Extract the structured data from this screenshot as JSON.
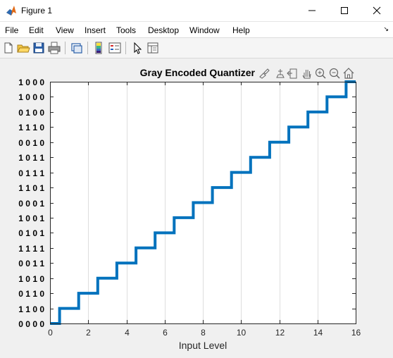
{
  "window": {
    "title": "Figure 1"
  },
  "menubar": {
    "items": [
      "File",
      "Edit",
      "View",
      "Insert",
      "Tools",
      "Desktop",
      "Window",
      "Help"
    ]
  },
  "toolbar": {
    "buttons": [
      "new-figure-icon",
      "open-file-icon",
      "save-icon",
      "print-icon",
      "link-plot-icon",
      "colorbar-icon",
      "legend-icon",
      "pointer-icon",
      "property-inspector-icon"
    ]
  },
  "axes_toolbar": {
    "buttons": [
      "brush-icon",
      "data-tips-icon",
      "export-icon",
      "pan-icon",
      "zoom-in-icon",
      "zoom-out-icon",
      "home-icon"
    ]
  },
  "colors": {
    "line": "#0072bd",
    "grid": "#dedede",
    "axes_bg": "#ffffff",
    "figure_bg": "#f0f0f0"
  },
  "chart_data": {
    "type": "line",
    "title": "Gray Encoded Quantizer",
    "xlabel": "Input Level",
    "ylabel": "",
    "xlim": [
      0,
      16
    ],
    "ylim": [
      0,
      16
    ],
    "xticks": [
      0,
      2,
      4,
      6,
      8,
      10,
      12,
      14,
      16
    ],
    "xtick_labels": [
      "0",
      "2",
      "4",
      "6",
      "8",
      "10",
      "12",
      "14",
      "16"
    ],
    "yticks": [
      0,
      1,
      2,
      3,
      4,
      5,
      6,
      7,
      8,
      9,
      10,
      11,
      12,
      13,
      14,
      15,
      16
    ],
    "ytick_labels": [
      "0 0 0 0",
      "1 1 0 0",
      "0 1 1 0",
      "1 0 1 0",
      "0 0 1 1",
      "1 1 1 1",
      "0 1 0 1",
      "1 0 0 1",
      "0 0 0 1",
      "1 1 0 1",
      "0 1 1 1",
      "1 0 1 1",
      "0 0 1 0",
      "1 1 1 0",
      "0 1 0 0",
      "1 0 0 0",
      "1 0 0 0"
    ],
    "grid_x": true,
    "grid_y": false,
    "series": [
      {
        "style": "stairs",
        "x": [
          0,
          0.5,
          0.5,
          1.5,
          1.5,
          2.5,
          2.5,
          3.5,
          3.5,
          4.5,
          4.5,
          5.5,
          5.5,
          6.5,
          6.5,
          7.5,
          7.5,
          8.5,
          8.5,
          9.5,
          9.5,
          10.5,
          10.5,
          11.5,
          11.5,
          12.5,
          12.5,
          13.5,
          13.5,
          14.5,
          14.5,
          15.5,
          15.5,
          16
        ],
        "y": [
          0,
          0,
          1,
          1,
          2,
          2,
          3,
          3,
          4,
          4,
          5,
          5,
          6,
          6,
          7,
          7,
          8,
          8,
          9,
          9,
          10,
          10,
          11,
          11,
          12,
          12,
          13,
          13,
          14,
          14,
          15,
          15,
          16,
          16
        ]
      }
    ]
  }
}
